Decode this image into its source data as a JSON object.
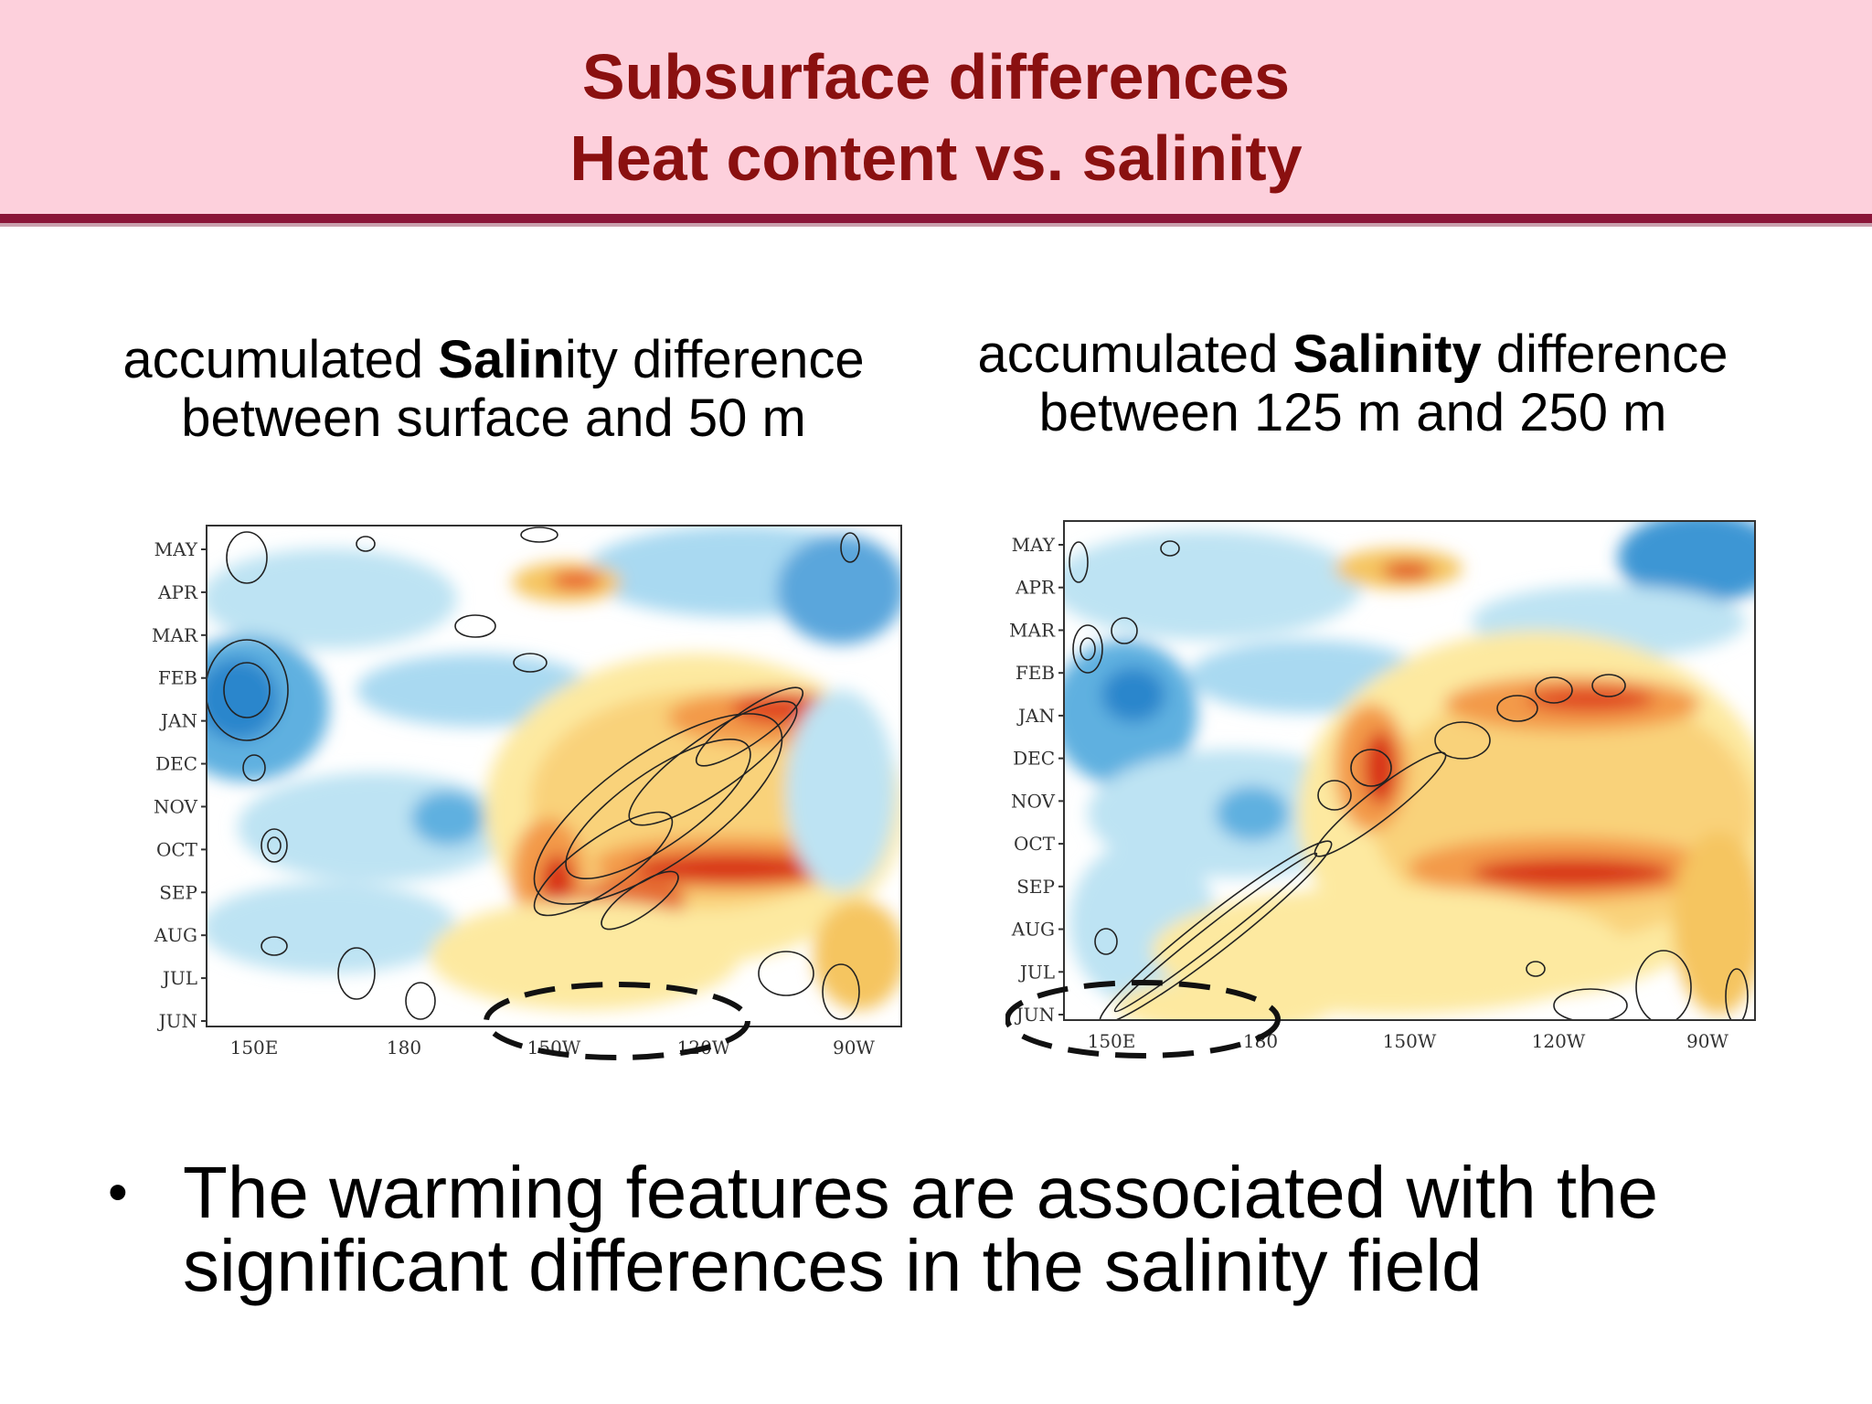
{
  "title": {
    "line1": "Subsurface differences",
    "line2": "Heat content vs. salinity"
  },
  "left_caption": {
    "pre": "accumulated ",
    "bold": "Salin",
    "post": "ity difference",
    "line2": "between surface and 50 m"
  },
  "right_caption": {
    "pre": "accumulated ",
    "bold": "Salinity",
    "post": " difference",
    "line2": "between 125 m and 250 m"
  },
  "months": [
    "MAY",
    "APR",
    "MAR",
    "FEB",
    "JAN",
    "DEC",
    "NOV",
    "OCT",
    "SEP",
    "AUG",
    "JUL",
    "JUN"
  ],
  "longitudes": [
    "150E",
    "180",
    "150W",
    "120W",
    "90W"
  ],
  "bullet": {
    "symbol": "•",
    "line1": "The warming features are associated with the",
    "line2": "significant differences in the salinity field"
  },
  "colors": {
    "title": "#8a1010",
    "header_bg": "#fdd0dc",
    "header_rule": "#8a1538"
  }
}
